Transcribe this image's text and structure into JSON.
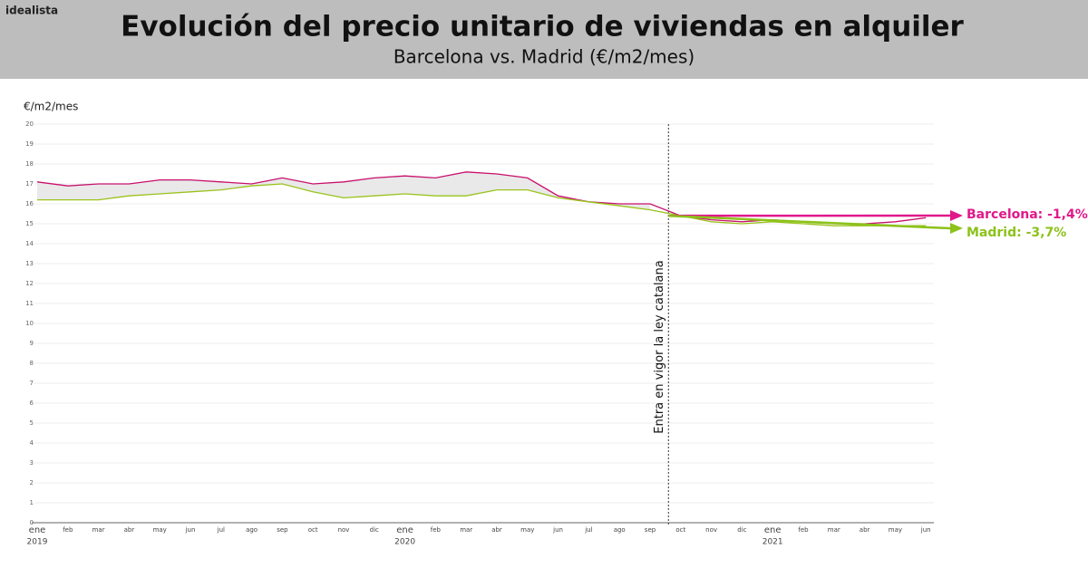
{
  "brand": "idealista",
  "chart_data": {
    "type": "line",
    "title": "Evolución del precio unitario de viviendas en alquiler",
    "subtitle": "Barcelona vs. Madrid (€/m2/mes)",
    "y_label": "€/m2/mes",
    "annotation": "Entra en vigor la ley catalana",
    "categories": [
      "ene",
      "feb",
      "mar",
      "abr",
      "may",
      "jun",
      "jul",
      "ago",
      "sep",
      "oct",
      "nov",
      "dic",
      "ene",
      "feb",
      "mar",
      "abr",
      "may",
      "jun",
      "jul",
      "ago",
      "sep",
      "oct",
      "nov",
      "dic",
      "ene",
      "feb",
      "mar",
      "abr",
      "may",
      "jun"
    ],
    "years": [
      "2019",
      "2020",
      "2021"
    ],
    "ylim": [
      0,
      20
    ],
    "yticks": [
      0,
      1,
      2,
      3,
      4,
      5,
      6,
      7,
      8,
      9,
      10,
      11,
      12,
      13,
      14,
      15,
      16,
      17,
      18,
      19,
      20
    ],
    "grid": true,
    "series": [
      {
        "name": "Barcelona",
        "color": "#c8106e",
        "end_label": "Barcelona: -1,4%",
        "label_color": "#e0198a",
        "values": [
          17.1,
          16.9,
          17.0,
          17.0,
          17.2,
          17.2,
          17.1,
          17.0,
          17.3,
          17.0,
          17.1,
          17.3,
          17.4,
          17.3,
          17.6,
          17.5,
          17.3,
          16.4,
          16.1,
          16.0,
          16.0,
          15.4,
          15.2,
          15.1,
          15.2,
          15.1,
          15.0,
          15.0,
          15.1,
          15.3
        ]
      },
      {
        "name": "Madrid",
        "color": "#9ac31c",
        "end_label": "Madrid: -3,7%",
        "label_color": "#8cc21a",
        "values": [
          16.2,
          16.2,
          16.2,
          16.4,
          16.5,
          16.6,
          16.7,
          16.9,
          17.0,
          16.6,
          16.3,
          16.4,
          16.5,
          16.4,
          16.4,
          16.7,
          16.7,
          16.3,
          16.1,
          15.9,
          15.7,
          15.4,
          15.1,
          15.0,
          15.1,
          15.0,
          14.9,
          14.9,
          14.9,
          14.9
        ]
      }
    ]
  }
}
